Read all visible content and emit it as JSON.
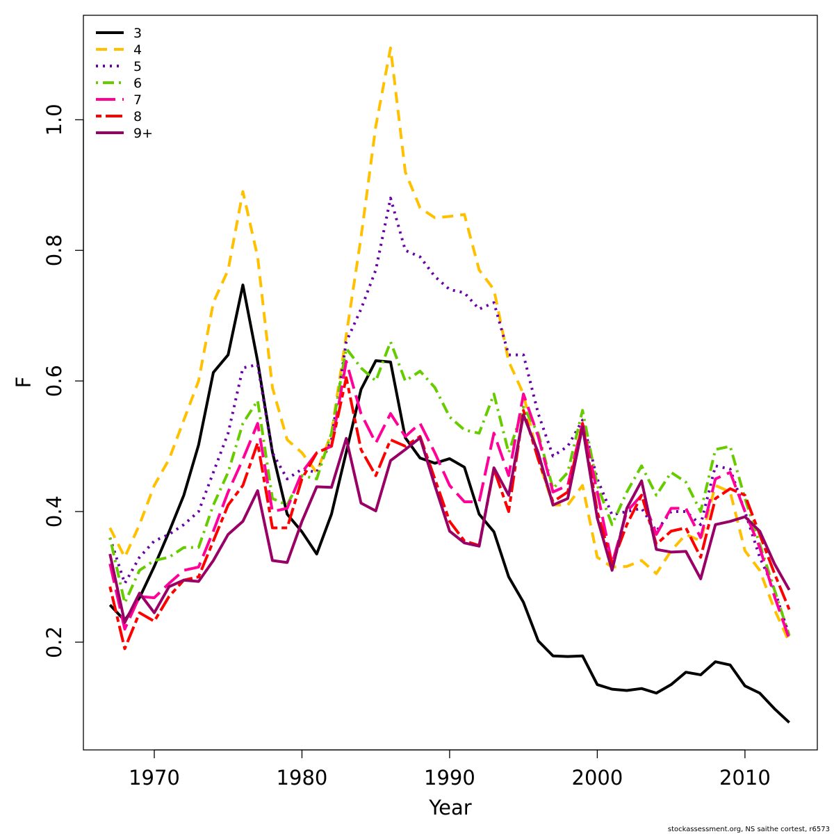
{
  "chart_data": {
    "type": "line",
    "xlabel": "Year",
    "ylabel": "F",
    "caption": "stockassessment.org, NS saithe cortest, r6573",
    "legend": "top-left",
    "xlim": [
      1965.2,
      2014.9
    ],
    "ylim": [
      0.035,
      1.16
    ],
    "xticks": [
      1970,
      1980,
      1990,
      2000,
      2010
    ],
    "yticks": [
      0.2,
      0.4,
      0.6,
      0.8,
      {
        "value": 1,
        "label": "1.0"
      }
    ],
    "x": [
      1967,
      1968,
      1969,
      1970,
      1971,
      1972,
      1973,
      1974,
      1975,
      1976,
      1977,
      1978,
      1979,
      1980,
      1981,
      1982,
      1983,
      1984,
      1985,
      1986,
      1987,
      1988,
      1989,
      1990,
      1991,
      1992,
      1993,
      1994,
      1995,
      1996,
      1997,
      1998,
      1999,
      2000,
      2001,
      2002,
      2003,
      2004,
      2005,
      2006,
      2007,
      2008,
      2009,
      2010,
      2011,
      2012,
      2013
    ],
    "series": [
      {
        "name": "3",
        "color": "#000000",
        "dash": "solid",
        "values": [
          0.257,
          0.233,
          0.268,
          0.316,
          0.369,
          0.425,
          0.502,
          0.613,
          0.64,
          0.747,
          0.63,
          0.491,
          0.396,
          0.369,
          0.335,
          0.396,
          0.491,
          0.587,
          0.631,
          0.629,
          0.513,
          0.482,
          0.474,
          0.481,
          0.468,
          0.396,
          0.369,
          0.3,
          0.261,
          0.202,
          0.179,
          0.178,
          0.179,
          0.135,
          0.128,
          0.126,
          0.129,
          0.122,
          0.135,
          0.154,
          0.15,
          0.17,
          0.165,
          0.133,
          0.122,
          0.098,
          0.077
        ]
      },
      {
        "name": "4",
        "color": "#FFC000",
        "dash": "dashed",
        "values": [
          0.375,
          0.33,
          0.38,
          0.44,
          0.48,
          0.54,
          0.6,
          0.72,
          0.77,
          0.89,
          0.79,
          0.59,
          0.51,
          0.49,
          0.46,
          0.52,
          0.67,
          0.82,
          0.99,
          1.11,
          0.92,
          0.865,
          0.85,
          0.852,
          0.855,
          0.77,
          0.74,
          0.63,
          0.58,
          0.48,
          0.41,
          0.41,
          0.44,
          0.33,
          0.315,
          0.316,
          0.325,
          0.305,
          0.34,
          0.365,
          0.355,
          0.44,
          0.43,
          0.34,
          0.31,
          0.25,
          0.2
        ]
      },
      {
        "name": "5",
        "color": "#6A00A8",
        "dash": "dotted",
        "values": [
          0.36,
          0.29,
          0.33,
          0.355,
          0.365,
          0.38,
          0.4,
          0.46,
          0.52,
          0.62,
          0.625,
          0.49,
          0.45,
          0.465,
          0.46,
          0.51,
          0.66,
          0.71,
          0.77,
          0.88,
          0.8,
          0.79,
          0.76,
          0.74,
          0.735,
          0.71,
          0.72,
          0.64,
          0.64,
          0.55,
          0.485,
          0.5,
          0.54,
          0.45,
          0.395,
          0.4,
          0.405,
          0.37,
          0.4,
          0.4,
          0.38,
          0.47,
          0.465,
          0.4,
          0.33,
          0.28,
          0.21
        ]
      },
      {
        "name": "6",
        "color": "#66CC00",
        "dash": "dotdash",
        "values": [
          0.36,
          0.26,
          0.31,
          0.325,
          0.33,
          0.345,
          0.345,
          0.41,
          0.46,
          0.535,
          0.57,
          0.42,
          0.41,
          0.455,
          0.45,
          0.52,
          0.65,
          0.62,
          0.6,
          0.66,
          0.6,
          0.615,
          0.59,
          0.545,
          0.525,
          0.52,
          0.58,
          0.49,
          0.56,
          0.52,
          0.435,
          0.46,
          0.555,
          0.44,
          0.38,
          0.43,
          0.47,
          0.425,
          0.46,
          0.445,
          0.4,
          0.495,
          0.5,
          0.42,
          0.35,
          0.28,
          0.21
        ]
      },
      {
        "name": "7",
        "color": "#FF0099",
        "dash": "longdash",
        "values": [
          0.32,
          0.22,
          0.27,
          0.268,
          0.29,
          0.31,
          0.315,
          0.37,
          0.43,
          0.48,
          0.535,
          0.4,
          0.405,
          0.46,
          0.49,
          0.5,
          0.63,
          0.55,
          0.505,
          0.55,
          0.515,
          0.535,
          0.49,
          0.44,
          0.415,
          0.415,
          0.52,
          0.455,
          0.58,
          0.515,
          0.43,
          0.44,
          0.535,
          0.43,
          0.32,
          0.4,
          0.425,
          0.365,
          0.405,
          0.405,
          0.36,
          0.45,
          0.46,
          0.4,
          0.345,
          0.27,
          0.205
        ]
      },
      {
        "name": "8",
        "color": "#FF0000",
        "dash": "twodash",
        "values": [
          0.285,
          0.19,
          0.245,
          0.232,
          0.27,
          0.295,
          0.3,
          0.355,
          0.41,
          0.44,
          0.505,
          0.375,
          0.375,
          0.45,
          0.49,
          0.5,
          0.605,
          0.495,
          0.455,
          0.51,
          0.5,
          0.515,
          0.45,
          0.385,
          0.355,
          0.348,
          0.465,
          0.4,
          0.555,
          0.48,
          0.415,
          0.43,
          0.535,
          0.4,
          0.32,
          0.38,
          0.425,
          0.35,
          0.37,
          0.375,
          0.33,
          0.42,
          0.435,
          0.425,
          0.365,
          0.305,
          0.25
        ]
      },
      {
        "name": "9+",
        "color": "#990066",
        "dash": "solid",
        "values": [
          0.335,
          0.23,
          0.275,
          0.245,
          0.285,
          0.295,
          0.293,
          0.325,
          0.365,
          0.385,
          0.432,
          0.325,
          0.322,
          0.385,
          0.438,
          0.437,
          0.512,
          0.413,
          0.401,
          0.478,
          0.495,
          0.513,
          0.44,
          0.37,
          0.352,
          0.347,
          0.467,
          0.425,
          0.548,
          0.49,
          0.41,
          0.42,
          0.53,
          0.39,
          0.31,
          0.405,
          0.447,
          0.342,
          0.338,
          0.339,
          0.297,
          0.38,
          0.385,
          0.392,
          0.37,
          0.32,
          0.28
        ]
      }
    ]
  }
}
